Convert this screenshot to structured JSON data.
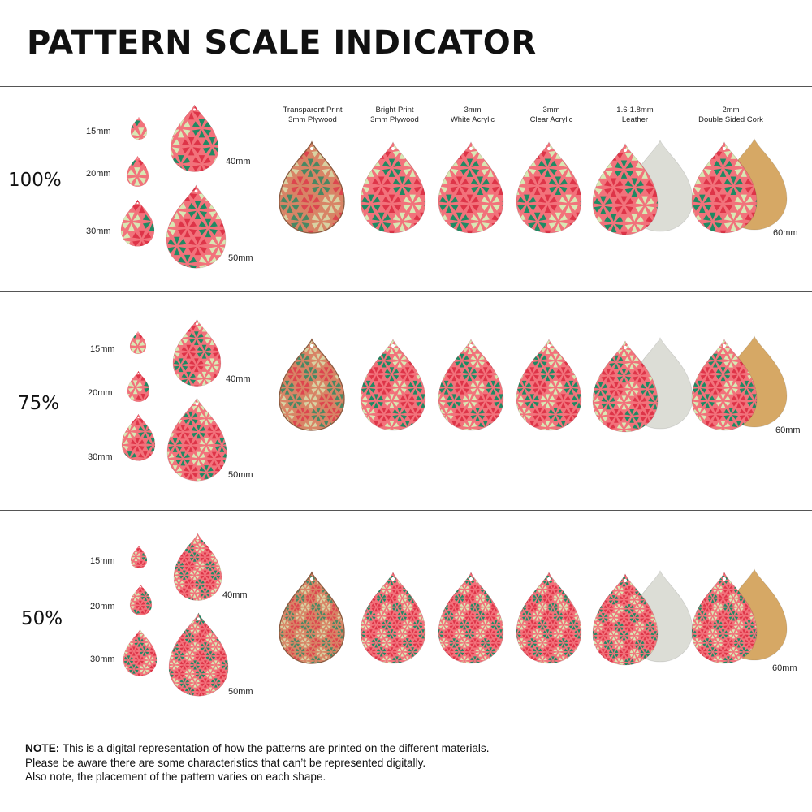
{
  "title": "PATTERN SCALE INDICATOR",
  "materials": [
    {
      "line1": "Transparent Print",
      "line2": "3mm Plywood"
    },
    {
      "line1": "Bright Print",
      "line2": "3mm Plywood"
    },
    {
      "line1": "3mm",
      "line2": "White Acrylic"
    },
    {
      "line1": "3mm",
      "line2": "Clear Acrylic"
    },
    {
      "line1": "1.6-1.8mm",
      "line2": "Leather"
    },
    {
      "line1": "2mm",
      "line2": "Double Sided Cork"
    }
  ],
  "sizes": {
    "s15": "15mm",
    "s20": "20mm",
    "s30": "30mm",
    "s40": "40mm",
    "s50": "50mm",
    "s60": "60mm"
  },
  "scales": [
    "100%",
    "75%",
    "50%"
  ],
  "note": {
    "label": "NOTE:",
    "line1": " This is a digital representation of how the patterns are printed on the different materials.",
    "line2": "Please be aware there are some characteristics that can’t be represented digitally.",
    "line3": "Also note, the placement of the pattern varies on each shape."
  },
  "colors": {
    "pink": "#f2727b",
    "green": "#1f8a63",
    "red": "#de3448",
    "cream": "#d8e8b4",
    "wood": "#d88466",
    "leather": "#dcddd6",
    "cork": "#d6a865"
  }
}
